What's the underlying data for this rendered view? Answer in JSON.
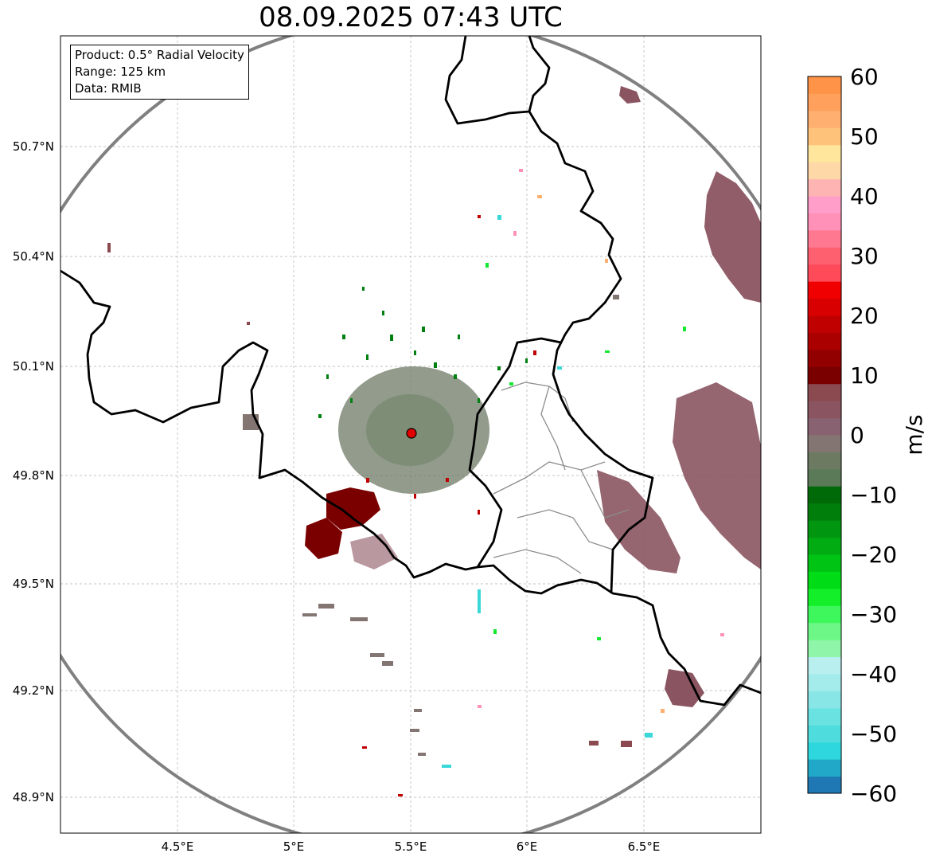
{
  "title": "08.09.2025 07:43 UTC",
  "info": {
    "product": "Product: 0.5° Radial Velocity",
    "range": "Range: 125 km",
    "source": "Data: RMIB"
  },
  "map": {
    "lon_ticks": [
      "4.5°E",
      "5°E",
      "5.5°E",
      "6°E",
      "6.5°E"
    ],
    "lat_ticks": [
      "50.7°N",
      "50.4°N",
      "50.1°N",
      "49.8°N",
      "49.5°N",
      "49.2°N",
      "48.9°N"
    ],
    "radar_site": {
      "lon": 5.505,
      "lat": 49.914
    },
    "range_ring_color": "#808080",
    "border_color": "#000000",
    "admin_border_color": "#8c8c8c"
  },
  "colorbar": {
    "label": "m/s",
    "ticks": [
      "60",
      "50",
      "40",
      "30",
      "20",
      "10",
      "0",
      "−10",
      "−20",
      "−30",
      "−40",
      "−50",
      "−60"
    ],
    "min": -60,
    "max": 60,
    "colors": [
      "#1f78b4",
      "#21a8c8",
      "#2ed7dd",
      "#4fdcdc",
      "#6ae2e2",
      "#88e6e6",
      "#a4ebeb",
      "#b9efef",
      "#8ff5a8",
      "#6cf786",
      "#3ef75c",
      "#13f02a",
      "#00dc16",
      "#00c414",
      "#00ac12",
      "#009610",
      "#007e0c",
      "#006a08",
      "#5a7a58",
      "#6c7a62",
      "#837672",
      "#886270",
      "#8a5460",
      "#8a4a50",
      "#7a0000",
      "#920000",
      "#aa0000",
      "#c00000",
      "#d80000",
      "#f00000",
      "#ff4a5a",
      "#ff6070",
      "#ff7890",
      "#ff90b8",
      "#ff9ec8",
      "#ffb4b4",
      "#ffd8a8",
      "#ffe69c",
      "#ffc27a",
      "#ffb070",
      "#ffa05c",
      "#ff9448"
    ]
  }
}
